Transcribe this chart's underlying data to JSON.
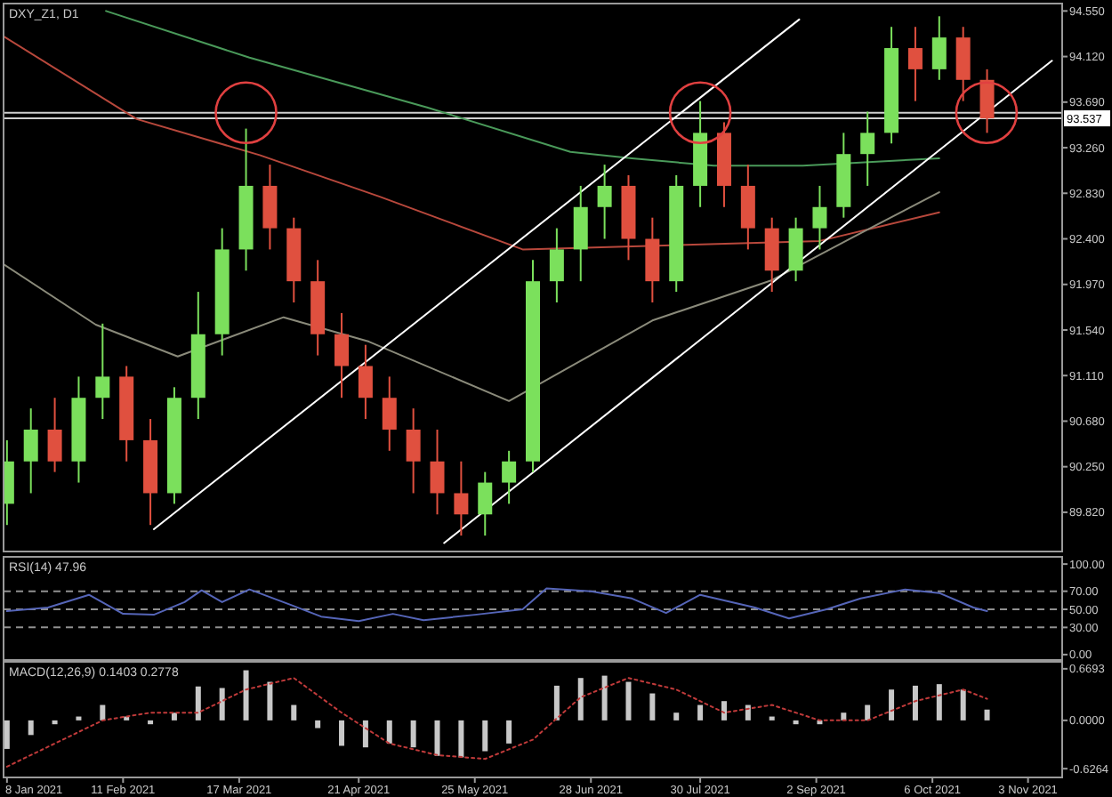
{
  "chart_data": [
    {
      "type": "candlestick",
      "title": "DXY_Z1, D1",
      "tick_labels": "y",
      "x": [
        "2021-01-08",
        "2021-01-15",
        "2021-01-22",
        "2021-01-29",
        "2021-02-05",
        "2021-02-12",
        "2021-02-19",
        "2021-02-26",
        "2021-03-05",
        "2021-03-12",
        "2021-03-19",
        "2021-03-26",
        "2021-04-02",
        "2021-04-09",
        "2021-04-16",
        "2021-04-23",
        "2021-04-30",
        "2021-05-07",
        "2021-05-14",
        "2021-05-21",
        "2021-05-28",
        "2021-06-04",
        "2021-06-11",
        "2021-06-18",
        "2021-06-25",
        "2021-07-02",
        "2021-07-09",
        "2021-07-16",
        "2021-07-23",
        "2021-07-30",
        "2021-08-06",
        "2021-08-13",
        "2021-08-20",
        "2021-08-27",
        "2021-09-03",
        "2021-09-10",
        "2021-09-17",
        "2021-09-24",
        "2021-10-01",
        "2021-10-08",
        "2021-10-15",
        "2021-10-22"
      ],
      "ohlc": [
        [
          89.9,
          90.5,
          89.7,
          90.3
        ],
        [
          90.3,
          90.8,
          90.0,
          90.6
        ],
        [
          90.6,
          90.9,
          90.2,
          90.3
        ],
        [
          90.3,
          91.1,
          90.1,
          90.9
        ],
        [
          90.9,
          91.6,
          90.7,
          91.1
        ],
        [
          91.1,
          91.2,
          90.3,
          90.5
        ],
        [
          90.5,
          90.7,
          89.7,
          90.0
        ],
        [
          90.0,
          91.0,
          89.9,
          90.9
        ],
        [
          90.9,
          91.9,
          90.7,
          91.5
        ],
        [
          91.5,
          92.5,
          91.3,
          92.3
        ],
        [
          92.3,
          93.44,
          92.1,
          92.9
        ],
        [
          92.9,
          93.1,
          92.3,
          92.5
        ],
        [
          92.5,
          92.6,
          91.8,
          92.0
        ],
        [
          92.0,
          92.2,
          91.3,
          91.5
        ],
        [
          91.5,
          91.7,
          90.9,
          91.2
        ],
        [
          91.2,
          91.4,
          90.7,
          90.9
        ],
        [
          90.9,
          91.1,
          90.4,
          90.6
        ],
        [
          90.6,
          90.8,
          90.0,
          90.3
        ],
        [
          90.3,
          90.6,
          89.8,
          90.0
        ],
        [
          90.0,
          90.3,
          89.6,
          89.8
        ],
        [
          89.8,
          90.2,
          89.6,
          90.1
        ],
        [
          90.1,
          90.4,
          89.9,
          90.3
        ],
        [
          90.3,
          92.2,
          90.2,
          92.0
        ],
        [
          92.0,
          92.5,
          91.8,
          92.3
        ],
        [
          92.3,
          92.9,
          92.0,
          92.7
        ],
        [
          92.7,
          93.1,
          92.4,
          92.9
        ],
        [
          92.9,
          93.0,
          92.2,
          92.4
        ],
        [
          92.4,
          92.6,
          91.8,
          92.0
        ],
        [
          92.0,
          93.0,
          91.9,
          92.9
        ],
        [
          92.9,
          93.7,
          92.7,
          93.4
        ],
        [
          93.4,
          93.5,
          92.7,
          92.9
        ],
        [
          92.9,
          93.1,
          92.3,
          92.5
        ],
        [
          92.5,
          92.6,
          91.9,
          92.1
        ],
        [
          92.1,
          92.6,
          92.0,
          92.5
        ],
        [
          92.5,
          92.9,
          92.3,
          92.7
        ],
        [
          92.7,
          93.4,
          92.6,
          93.2
        ],
        [
          93.2,
          93.6,
          92.9,
          93.4
        ],
        [
          93.4,
          94.4,
          93.3,
          94.2
        ],
        [
          94.2,
          94.4,
          93.7,
          94.0
        ],
        [
          94.0,
          94.5,
          93.9,
          94.3
        ],
        [
          94.3,
          94.4,
          93.7,
          93.9
        ],
        [
          93.9,
          94.0,
          93.4,
          93.537
        ]
      ],
      "colors": [
        "#7be05c",
        "#7be05c",
        "#e0503f",
        "#7be05c",
        "#7be05c",
        "#e0503f",
        "#e0503f",
        "#7be05c",
        "#7be05c",
        "#7be05c",
        "#7be05c",
        "#e0503f",
        "#e0503f",
        "#e0503f",
        "#e0503f",
        "#e0503f",
        "#e0503f",
        "#e0503f",
        "#e0503f",
        "#e0503f",
        "#7be05c",
        "#7be05c",
        "#7be05c",
        "#7be05c",
        "#7be05c",
        "#7be05c",
        "#e0503f",
        "#e0503f",
        "#7be05c",
        "#7be05c",
        "#e0503f",
        "#e0503f",
        "#e0503f",
        "#7be05c",
        "#7be05c",
        "#7be05c",
        "#7be05c",
        "#7be05c",
        "#e0503f",
        "#7be05c",
        "#e0503f",
        "#e0503f"
      ],
      "series": [
        {
          "type": "line",
          "color": "#4a9a5a",
          "x": [
            "2021-02-06",
            "2021-03-20",
            "2021-05-11",
            "2021-06-22",
            "2021-07-10",
            "2021-08-03",
            "2021-08-29",
            "2021-10-08"
          ],
          "values": [
            94.55,
            94.11,
            93.64,
            93.22,
            93.16,
            93.09,
            93.09,
            93.16
          ]
        },
        {
          "type": "line",
          "color": "#b8483c",
          "x": [
            "2021-01-07",
            "2021-02-15",
            "2021-03-23",
            "2021-04-27",
            "2021-06-08",
            "2021-09-03",
            "2021-10-08"
          ],
          "values": [
            94.31,
            93.53,
            93.19,
            92.8,
            92.3,
            92.38,
            92.65
          ]
        },
        {
          "type": "line",
          "color": "#8a8a7a",
          "x": [
            "2021-01-07",
            "2021-02-03",
            "2021-02-27",
            "2021-03-30",
            "2021-04-24",
            "2021-06-04",
            "2021-07-16",
            "2021-08-20",
            "2021-09-13",
            "2021-10-08"
          ],
          "values": [
            92.16,
            91.59,
            91.29,
            91.66,
            91.43,
            90.87,
            91.63,
            92.01,
            92.42,
            92.84
          ]
        },
        {
          "type": "line",
          "color": "#ffffff",
          "x": [
            "2021-02-20",
            "2021-08-28"
          ],
          "values": [
            89.66,
            94.47
          ]
        },
        {
          "type": "line",
          "color": "#ffffff",
          "x": [
            "2021-05-16",
            "2021-11-10"
          ],
          "values": [
            89.53,
            94.08
          ]
        }
      ],
      "ref_lines": [
        {
          "axis": "y",
          "value": 93.59,
          "color": "#d0d0d0"
        },
        {
          "axis": "y",
          "value": 93.537,
          "label": "93.537",
          "color": "#d0d0d0"
        }
      ],
      "xlim": [
        "2021-01-07",
        "2021-11-13"
      ],
      "ylim": [
        89.45,
        94.62
      ],
      "yticks": [
        {
          "value": 94.55,
          "label": "94.550"
        },
        {
          "value": 94.12,
          "label": "94.120"
        },
        {
          "value": 93.69,
          "label": "93.690"
        },
        {
          "value": 93.26,
          "label": "93.260"
        },
        {
          "value": 92.83,
          "label": "92.830"
        },
        {
          "value": 92.4,
          "label": "92.400"
        },
        {
          "value": 91.97,
          "label": "91.970"
        },
        {
          "value": 91.54,
          "label": "91.540"
        },
        {
          "value": 91.11,
          "label": "91.110"
        },
        {
          "value": 90.68,
          "label": "90.680"
        },
        {
          "value": 90.25,
          "label": "90.250"
        },
        {
          "value": 89.82,
          "label": "89.820"
        }
      ]
    },
    {
      "type": "line",
      "title": "RSI(14) 47.96",
      "tick_labels": "y",
      "series": [
        {
          "color": "#5565b8",
          "x": [
            "2021-01-08",
            "2021-01-20",
            "2021-02-01",
            "2021-02-11",
            "2021-02-20",
            "2021-03-01",
            "2021-03-06",
            "2021-03-12",
            "2021-03-20",
            "2021-04-01",
            "2021-04-10",
            "2021-04-21",
            "2021-05-01",
            "2021-05-10",
            "2021-05-25",
            "2021-06-08",
            "2021-06-15",
            "2021-06-28",
            "2021-07-10",
            "2021-07-20",
            "2021-07-30",
            "2021-08-15",
            "2021-08-25",
            "2021-09-05",
            "2021-09-15",
            "2021-09-28",
            "2021-10-08",
            "2021-10-18",
            "2021-10-22"
          ],
          "values": [
            48,
            52,
            66,
            45,
            44,
            58,
            71,
            58,
            72,
            55,
            42,
            37,
            45,
            38,
            44,
            50,
            73,
            70,
            62,
            46,
            66,
            52,
            40,
            50,
            62,
            72,
            68,
            52,
            48
          ]
        }
      ],
      "ref_lines": [
        {
          "axis": "y",
          "value": 70,
          "line_style": "dashed",
          "color": "#909090"
        },
        {
          "axis": "y",
          "value": 50,
          "line_style": "dashed",
          "color": "#909090"
        },
        {
          "axis": "y",
          "value": 30,
          "line_style": "dashed",
          "color": "#909090"
        }
      ],
      "xlim": [
        "2021-01-07",
        "2021-11-13"
      ],
      "ylim": [
        -6,
        108
      ],
      "yticks": [
        {
          "value": 100,
          "label": "100.00"
        },
        {
          "value": 70,
          "label": "70.00"
        },
        {
          "value": 50,
          "label": "50.00"
        },
        {
          "value": 30,
          "label": "30.00"
        },
        {
          "value": 0,
          "label": "0.00"
        }
      ]
    },
    {
      "type": "bar",
      "title": "MACD(12,26,9) 0.1403 0.2778",
      "x": [
        "2021-01-08",
        "2021-01-15",
        "2021-01-22",
        "2021-01-29",
        "2021-02-05",
        "2021-02-12",
        "2021-02-19",
        "2021-02-26",
        "2021-03-05",
        "2021-03-12",
        "2021-03-19",
        "2021-03-26",
        "2021-04-02",
        "2021-04-09",
        "2021-04-16",
        "2021-04-23",
        "2021-04-30",
        "2021-05-07",
        "2021-05-14",
        "2021-05-21",
        "2021-05-28",
        "2021-06-04",
        "2021-06-11",
        "2021-06-18",
        "2021-06-25",
        "2021-07-02",
        "2021-07-09",
        "2021-07-16",
        "2021-07-23",
        "2021-07-30",
        "2021-08-06",
        "2021-08-13",
        "2021-08-20",
        "2021-08-27",
        "2021-09-03",
        "2021-09-10",
        "2021-09-17",
        "2021-09-24",
        "2021-10-01",
        "2021-10-08",
        "2021-10-15",
        "2021-10-22"
      ],
      "series": [
        {
          "type": "bar",
          "color": "#c8c8c8",
          "values": [
            -0.37,
            -0.19,
            -0.05,
            0.05,
            0.2,
            0.05,
            -0.05,
            0.1,
            0.44,
            0.42,
            0.65,
            0.5,
            0.2,
            -0.1,
            -0.33,
            -0.35,
            -0.3,
            -0.35,
            -0.46,
            -0.48,
            -0.4,
            -0.3,
            0.0,
            0.45,
            0.55,
            0.58,
            0.5,
            0.35,
            0.1,
            0.2,
            0.25,
            0.2,
            0.05,
            -0.05,
            -0.05,
            0.1,
            0.2,
            0.4,
            0.45,
            0.47,
            0.4,
            0.14
          ]
        },
        {
          "type": "line",
          "color": "#c03a3a",
          "line_style": "dotted",
          "x": [
            "2021-01-08",
            "2021-01-22",
            "2021-02-05",
            "2021-02-19",
            "2021-03-05",
            "2021-03-19",
            "2021-04-02",
            "2021-04-16",
            "2021-04-30",
            "2021-05-14",
            "2021-05-28",
            "2021-06-11",
            "2021-06-25",
            "2021-07-09",
            "2021-07-23",
            "2021-08-06",
            "2021-08-20",
            "2021-09-03",
            "2021-09-17",
            "2021-10-01",
            "2021-10-15",
            "2021-10-22"
          ],
          "values": [
            -0.6,
            -0.3,
            0.0,
            0.1,
            0.1,
            0.4,
            0.55,
            0.1,
            -0.3,
            -0.45,
            -0.5,
            -0.25,
            0.3,
            0.55,
            0.4,
            0.1,
            0.2,
            0.0,
            0.0,
            0.25,
            0.4,
            0.28
          ]
        }
      ],
      "xlim": [
        "2021-01-07",
        "2021-11-13"
      ],
      "ylim": [
        -0.74,
        0.76
      ],
      "yticks": [
        {
          "value": 0.6693,
          "label": "0.6693"
        },
        {
          "value": 0,
          "label": "0.0000"
        },
        {
          "value": -0.6264,
          "label": "-0.6264"
        }
      ],
      "xticks": [
        {
          "value": "2021-01-08",
          "label": "8 Jan 2021"
        },
        {
          "value": "2021-02-11",
          "label": "11 Feb 2021"
        },
        {
          "value": "2021-03-17",
          "label": "17 Mar 2021"
        },
        {
          "value": "2021-04-21",
          "label": "21 Apr 2021"
        },
        {
          "value": "2021-05-25",
          "label": "25 May 2021"
        },
        {
          "value": "2021-06-28",
          "label": "28 Jun 2021"
        },
        {
          "value": "2021-07-30",
          "label": "30 Jul 2021"
        },
        {
          "value": "2021-09-02",
          "label": "2 Sep 2021"
        },
        {
          "value": "2021-10-06",
          "label": "6 Oct 2021"
        },
        {
          "value": "2021-11-03",
          "label": "3 Nov 2021"
        }
      ]
    }
  ]
}
